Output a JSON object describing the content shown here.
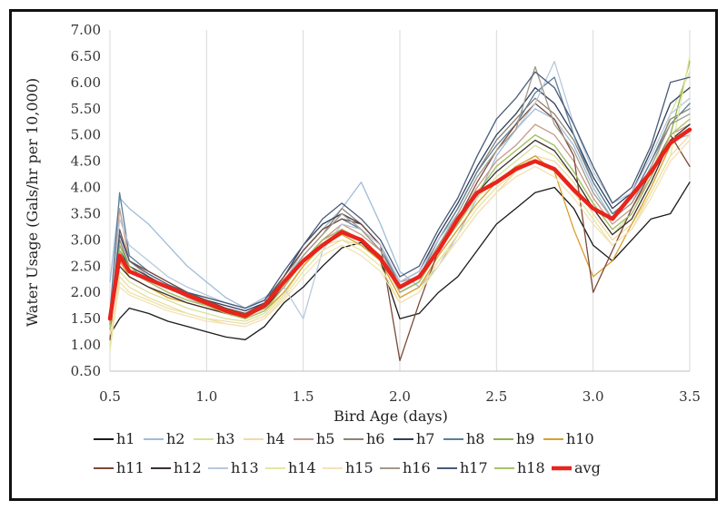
{
  "chart_data": {
    "type": "line",
    "title": "",
    "xlabel": "Bird Age (days)",
    "ylabel": "Water Usage (Gals/hr per 10,000)",
    "xlim": [
      0.5,
      3.5
    ],
    "ylim": [
      0.5,
      7.0
    ],
    "x_ticks": [
      "0.5",
      "1.0",
      "1.5",
      "2.0",
      "2.5",
      "3.0",
      "3.5"
    ],
    "y_ticks": [
      "0.50",
      "1.00",
      "1.50",
      "2.00",
      "2.50",
      "3.00",
      "3.50",
      "4.00",
      "4.50",
      "5.00",
      "5.50",
      "6.00",
      "6.50",
      "7.00"
    ],
    "grid": "vertical",
    "legend_position": "bottom",
    "x": [
      0.5,
      0.55,
      0.6,
      0.7,
      0.8,
      0.9,
      1.0,
      1.1,
      1.2,
      1.3,
      1.4,
      1.5,
      1.6,
      1.7,
      1.8,
      1.9,
      2.0,
      2.1,
      2.2,
      2.3,
      2.4,
      2.5,
      2.6,
      2.7,
      2.8,
      2.9,
      3.0,
      3.1,
      3.2,
      3.3,
      3.4,
      3.5
    ],
    "series": [
      {
        "name": "h1",
        "color": "#1a1a1a",
        "values": [
          1.2,
          1.5,
          1.7,
          1.6,
          1.45,
          1.35,
          1.25,
          1.15,
          1.1,
          1.35,
          1.8,
          2.1,
          2.5,
          2.85,
          2.95,
          2.6,
          1.5,
          1.6,
          2.0,
          2.3,
          2.8,
          3.3,
          3.6,
          3.9,
          4.0,
          3.6,
          2.9,
          2.6,
          3.0,
          3.4,
          3.5,
          4.1
        ]
      },
      {
        "name": "h2",
        "color": "#9fbcd9",
        "values": [
          2.2,
          3.8,
          3.6,
          3.3,
          2.9,
          2.5,
          2.2,
          1.9,
          1.7,
          1.9,
          2.2,
          2.8,
          3.2,
          3.6,
          4.1,
          3.3,
          2.4,
          2.1,
          2.5,
          3.1,
          3.8,
          4.6,
          5.1,
          5.5,
          5.3,
          4.8,
          4.0,
          3.4,
          3.7,
          4.3,
          4.9,
          5.0
        ]
      },
      {
        "name": "h3",
        "color": "#d8e19b",
        "values": [
          1.0,
          2.4,
          2.2,
          2.0,
          1.85,
          1.7,
          1.6,
          1.5,
          1.45,
          1.6,
          2.0,
          2.5,
          2.9,
          3.2,
          3.0,
          2.7,
          2.0,
          2.2,
          2.8,
          3.3,
          3.8,
          4.2,
          4.5,
          4.8,
          4.6,
          4.2,
          3.6,
          3.1,
          3.5,
          4.2,
          5.4,
          6.2
        ]
      },
      {
        "name": "h4",
        "color": "#f2d9a6",
        "values": [
          1.1,
          2.3,
          2.1,
          1.9,
          1.75,
          1.6,
          1.5,
          1.45,
          1.4,
          1.55,
          1.95,
          2.5,
          2.9,
          3.0,
          2.9,
          2.6,
          1.9,
          2.1,
          2.6,
          3.0,
          3.5,
          3.9,
          4.3,
          4.6,
          4.5,
          4.1,
          3.5,
          3.0,
          3.3,
          3.9,
          4.6,
          5.0
        ]
      },
      {
        "name": "h5",
        "color": "#c49a86",
        "values": [
          1.3,
          3.6,
          2.6,
          2.3,
          2.1,
          1.9,
          1.75,
          1.65,
          1.55,
          1.7,
          2.1,
          2.6,
          3.0,
          3.3,
          3.1,
          2.8,
          2.2,
          2.3,
          2.9,
          3.4,
          4.0,
          4.5,
          4.8,
          5.2,
          5.0,
          4.5,
          3.8,
          3.3,
          3.6,
          4.2,
          5.0,
          5.2
        ]
      },
      {
        "name": "h6",
        "color": "#8c8275",
        "values": [
          1.4,
          3.0,
          2.5,
          2.3,
          2.1,
          1.95,
          1.8,
          1.7,
          1.6,
          1.75,
          2.2,
          2.7,
          3.1,
          3.6,
          3.3,
          2.9,
          2.1,
          2.3,
          3.0,
          3.6,
          4.3,
          4.9,
          5.3,
          5.7,
          5.4,
          4.9,
          4.1,
          3.5,
          3.8,
          4.5,
          5.3,
          5.5
        ]
      },
      {
        "name": "h7",
        "color": "#2f3f5a",
        "values": [
          1.5,
          2.8,
          2.5,
          2.3,
          2.1,
          1.95,
          1.85,
          1.75,
          1.65,
          1.8,
          2.3,
          2.9,
          3.3,
          3.5,
          3.3,
          2.9,
          2.2,
          2.4,
          3.1,
          3.7,
          4.4,
          5.0,
          5.4,
          5.9,
          5.6,
          5.0,
          4.2,
          3.6,
          3.9,
          4.7,
          5.6,
          5.9
        ]
      },
      {
        "name": "h8",
        "color": "#5b7f99",
        "values": [
          1.6,
          3.9,
          2.7,
          2.4,
          2.2,
          2.0,
          1.9,
          1.8,
          1.7,
          1.85,
          2.3,
          2.8,
          3.2,
          3.4,
          3.2,
          2.8,
          2.2,
          2.4,
          3.0,
          3.6,
          4.3,
          4.8,
          5.2,
          5.8,
          6.1,
          5.0,
          4.1,
          3.5,
          3.8,
          4.5,
          5.2,
          5.6
        ]
      },
      {
        "name": "h9",
        "color": "#8fb04f",
        "values": [
          1.3,
          2.9,
          2.5,
          2.2,
          2.0,
          1.85,
          1.75,
          1.6,
          1.5,
          1.65,
          2.1,
          2.6,
          3.0,
          3.2,
          3.0,
          2.7,
          2.0,
          2.2,
          2.8,
          3.3,
          3.9,
          4.4,
          4.7,
          5.0,
          4.8,
          4.3,
          3.7,
          3.2,
          3.5,
          4.2,
          5.0,
          6.4
        ]
      },
      {
        "name": "h10",
        "color": "#d9a02a",
        "values": [
          1.5,
          2.6,
          2.3,
          2.1,
          1.9,
          1.8,
          1.7,
          1.6,
          1.5,
          1.65,
          2.0,
          2.5,
          2.9,
          3.1,
          2.9,
          2.6,
          1.9,
          2.1,
          2.7,
          3.2,
          3.7,
          4.1,
          4.4,
          4.6,
          4.3,
          3.2,
          2.3,
          2.6,
          3.3,
          4.0,
          4.8,
          5.1
        ]
      },
      {
        "name": "h11",
        "color": "#7a4a3a",
        "values": [
          1.1,
          3.2,
          2.6,
          2.4,
          2.2,
          2.0,
          1.85,
          1.7,
          1.6,
          1.8,
          2.3,
          2.8,
          3.2,
          3.4,
          3.3,
          2.9,
          0.7,
          1.8,
          2.8,
          3.4,
          4.1,
          4.7,
          5.2,
          5.6,
          5.3,
          4.6,
          2.0,
          2.8,
          3.6,
          4.3,
          5.0,
          4.4
        ]
      },
      {
        "name": "h12",
        "color": "#3b2f2f",
        "values": [
          1.4,
          2.5,
          2.3,
          2.1,
          1.95,
          1.8,
          1.7,
          1.6,
          1.55,
          1.7,
          2.1,
          2.6,
          3.0,
          3.2,
          3.0,
          2.7,
          2.0,
          2.2,
          2.8,
          3.3,
          3.9,
          4.3,
          4.6,
          4.9,
          4.7,
          4.2,
          3.6,
          3.1,
          3.4,
          4.1,
          4.9,
          5.2
        ]
      },
      {
        "name": "h13",
        "color": "#b7c9dd",
        "values": [
          1.3,
          3.4,
          2.9,
          2.6,
          2.3,
          2.1,
          1.95,
          1.8,
          1.7,
          1.85,
          2.1,
          1.5,
          2.8,
          3.3,
          3.2,
          2.9,
          2.2,
          2.4,
          3.0,
          3.5,
          4.2,
          4.7,
          5.1,
          5.6,
          6.4,
          5.2,
          4.3,
          3.7,
          3.9,
          4.6,
          5.4,
          5.7
        ]
      },
      {
        "name": "h14",
        "color": "#e6e6a0",
        "values": [
          0.9,
          2.2,
          2.0,
          1.85,
          1.7,
          1.6,
          1.5,
          1.4,
          1.35,
          1.5,
          1.9,
          2.4,
          2.8,
          3.0,
          2.8,
          2.5,
          1.8,
          2.0,
          2.6,
          3.1,
          3.6,
          4.0,
          4.3,
          4.5,
          4.3,
          3.9,
          3.4,
          2.9,
          3.2,
          3.9,
          4.6,
          6.5
        ]
      },
      {
        "name": "h15",
        "color": "#f5e1b8",
        "values": [
          1.2,
          2.1,
          1.95,
          1.8,
          1.65,
          1.55,
          1.45,
          1.4,
          1.35,
          1.5,
          1.85,
          2.3,
          2.7,
          2.9,
          2.7,
          2.4,
          1.8,
          2.0,
          2.5,
          3.0,
          3.5,
          3.9,
          4.2,
          4.4,
          4.2,
          3.8,
          3.3,
          2.9,
          3.2,
          3.8,
          4.5,
          4.9
        ]
      },
      {
        "name": "h16",
        "color": "#a3998a",
        "values": [
          1.4,
          2.7,
          2.4,
          2.2,
          2.0,
          1.85,
          1.75,
          1.65,
          1.55,
          1.7,
          2.2,
          2.7,
          3.1,
          3.5,
          3.2,
          2.8,
          2.1,
          2.3,
          2.9,
          3.5,
          4.2,
          4.7,
          5.1,
          6.3,
          5.2,
          4.7,
          3.9,
          3.4,
          3.7,
          4.4,
          5.2,
          5.4
        ]
      },
      {
        "name": "h17",
        "color": "#4a5a78",
        "values": [
          1.5,
          3.1,
          2.6,
          2.35,
          2.15,
          2.0,
          1.9,
          1.8,
          1.7,
          1.85,
          2.4,
          2.9,
          3.4,
          3.7,
          3.4,
          3.0,
          2.3,
          2.5,
          3.2,
          3.8,
          4.6,
          5.3,
          5.7,
          6.2,
          5.9,
          5.2,
          4.4,
          3.7,
          4.0,
          4.8,
          6.0,
          6.1
        ]
      },
      {
        "name": "h18",
        "color": "#a8c26a",
        "values": [
          1.3,
          2.8,
          2.4,
          2.2,
          2.0,
          1.85,
          1.75,
          1.6,
          1.5,
          1.65,
          2.1,
          2.6,
          3.0,
          3.2,
          3.0,
          2.7,
          2.0,
          2.2,
          2.8,
          3.3,
          3.9,
          4.4,
          4.7,
          5.0,
          4.8,
          4.3,
          3.7,
          3.2,
          3.5,
          4.2,
          5.0,
          5.3
        ]
      },
      {
        "name": "avg",
        "color": "#e8241c",
        "values": [
          1.5,
          2.7,
          2.4,
          2.25,
          2.1,
          1.95,
          1.8,
          1.65,
          1.55,
          1.75,
          2.2,
          2.6,
          2.9,
          3.15,
          3.0,
          2.65,
          2.1,
          2.3,
          2.8,
          3.4,
          3.9,
          4.1,
          4.35,
          4.5,
          4.35,
          3.95,
          3.6,
          3.4,
          3.85,
          4.3,
          4.85,
          5.1
        ]
      }
    ]
  }
}
